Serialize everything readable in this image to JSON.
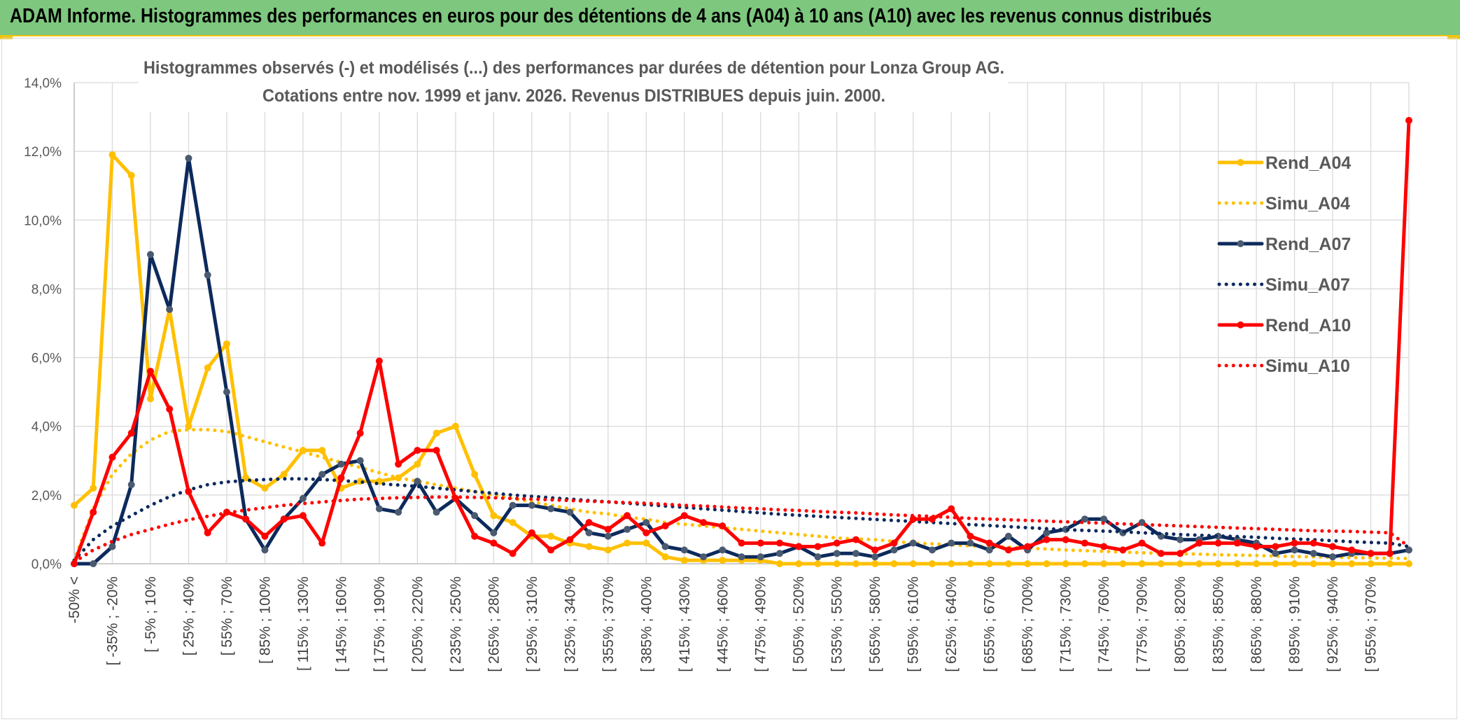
{
  "banner": {
    "title": "ADAM Informe. Histogrammes des performances en euros pour des détentions de 4 ans (A04) à 10 ans (A10) avec les revenus connus distribués"
  },
  "chart_data": {
    "type": "line",
    "title_line1": "Histogrammes observés (-) et modélisés (...) des performances par durées de détention pour Lonza Group AG.",
    "title_line2": "Cotations entre nov. 1999 et janv. 2026. Revenus DISTRIBUES depuis juin. 2000.",
    "ylim": [
      0,
      14
    ],
    "yticks": [
      {
        "v": 0,
        "label": "0,0%"
      },
      {
        "v": 2,
        "label": "2,0%"
      },
      {
        "v": 4,
        "label": "4,0%"
      },
      {
        "v": 6,
        "label": "6,0%"
      },
      {
        "v": 8,
        "label": "8,0%"
      },
      {
        "v": 10,
        "label": "10,0%"
      },
      {
        "v": 12,
        "label": "12,0%"
      },
      {
        "v": 14,
        "label": "14,0%"
      }
    ],
    "grid": true,
    "legend_position": "right",
    "n_points": 71,
    "tick_labels": [
      "-50% <",
      "[ -35% ; -20%",
      "[ -5% ; 10%",
      "[ 25% ; 40%",
      "[ 55% ; 70%",
      "[ 85% ; 100%",
      "[ 115% ; 130%",
      "[ 145% ; 160%",
      "[ 175% ; 190%",
      "[ 205% ; 220%",
      "[ 235% ; 250%",
      "[ 265% ; 280%",
      "[ 295% ; 310%",
      "[ 325% ; 340%",
      "[ 355% ; 370%",
      "[ 385% ; 400%",
      "[ 415% ; 430%",
      "[ 445% ; 460%",
      "[ 475% ; 490%",
      "[ 505% ; 520%",
      "[ 535% ; 550%",
      "[ 565% ; 580%",
      "[ 595% ; 610%",
      "[ 625% ; 640%",
      "[ 655% ; 670%",
      "[ 685% ; 700%",
      "[ 715% ; 730%",
      "[ 745% ; 760%",
      "[ 775% ; 790%",
      "[ 805% ; 820%",
      "[ 835% ; 850%",
      "[ 865% ; 880%",
      "[ 895% ; 910%",
      "[ 925% ; 940%",
      "[ 955% ; 970%"
    ],
    "series": [
      {
        "name": "Rend_A04",
        "style": "solid",
        "color": "#ffc000",
        "markers": true,
        "values": [
          1.7,
          2.2,
          11.9,
          11.3,
          4.8,
          7.4,
          4.0,
          5.7,
          6.4,
          2.5,
          2.2,
          2.6,
          3.3,
          3.3,
          2.2,
          2.4,
          2.4,
          2.5,
          2.9,
          3.8,
          4.0,
          2.6,
          1.4,
          1.2,
          0.8,
          0.8,
          0.6,
          0.5,
          0.4,
          0.6,
          0.6,
          0.2,
          0.1,
          0.1,
          0.1,
          0.1,
          0.1,
          0.0,
          0.0,
          0.0,
          0.0,
          0.0,
          0.0,
          0.0,
          0.0,
          0.0,
          0.0,
          0.0,
          0.0,
          0.0,
          0.0,
          0.0,
          0.0,
          0.0,
          0.0,
          0.0,
          0.0,
          0.0,
          0.0,
          0.0,
          0.0,
          0.0,
          0.0,
          0.0,
          0.0,
          0.0,
          0.0,
          0.0,
          0.0,
          0.0,
          0.0
        ]
      },
      {
        "name": "Simu_A04",
        "style": "dotted",
        "color": "#ffc000",
        "markers": false,
        "values": [
          0.1,
          1.6,
          2.6,
          3.2,
          3.6,
          3.85,
          3.9,
          3.9,
          3.85,
          3.7,
          3.55,
          3.4,
          3.25,
          3.1,
          2.95,
          2.8,
          2.65,
          2.5,
          2.4,
          2.3,
          2.2,
          2.1,
          2.0,
          1.9,
          1.8,
          1.7,
          1.6,
          1.5,
          1.45,
          1.35,
          1.3,
          1.2,
          1.15,
          1.1,
          1.05,
          1.0,
          0.95,
          0.9,
          0.85,
          0.8,
          0.75,
          0.72,
          0.7,
          0.65,
          0.6,
          0.58,
          0.55,
          0.52,
          0.5,
          0.48,
          0.45,
          0.43,
          0.4,
          0.38,
          0.36,
          0.34,
          0.32,
          0.3,
          0.29,
          0.28,
          0.26,
          0.25,
          0.24,
          0.22,
          0.21,
          0.2,
          0.19,
          0.18,
          0.17,
          0.16,
          0.15
        ]
      },
      {
        "name": "Rend_A07",
        "style": "solid",
        "color": "#0d2a5c",
        "markers": true,
        "values": [
          0.0,
          0.0,
          0.5,
          2.3,
          9.0,
          7.4,
          11.8,
          8.4,
          5.0,
          1.3,
          0.4,
          1.3,
          1.9,
          2.6,
          2.9,
          3.0,
          1.6,
          1.5,
          2.4,
          1.5,
          1.9,
          1.4,
          0.9,
          1.7,
          1.7,
          1.6,
          1.5,
          0.9,
          0.8,
          1.0,
          1.2,
          0.5,
          0.4,
          0.2,
          0.4,
          0.2,
          0.2,
          0.3,
          0.5,
          0.2,
          0.3,
          0.3,
          0.2,
          0.4,
          0.6,
          0.4,
          0.6,
          0.6,
          0.4,
          0.8,
          0.4,
          0.9,
          1.0,
          1.3,
          1.3,
          0.9,
          1.2,
          0.8,
          0.7,
          0.7,
          0.8,
          0.7,
          0.6,
          0.3,
          0.4,
          0.3,
          0.2,
          0.3,
          0.3,
          0.3,
          0.4
        ]
      },
      {
        "name": "Simu_A07",
        "style": "dotted",
        "color": "#0d2a5c",
        "markers": false,
        "values": [
          0.1,
          0.7,
          1.1,
          1.4,
          1.7,
          1.95,
          2.15,
          2.3,
          2.38,
          2.42,
          2.45,
          2.47,
          2.47,
          2.45,
          2.42,
          2.38,
          2.33,
          2.29,
          2.25,
          2.2,
          2.15,
          2.1,
          2.05,
          2.0,
          1.96,
          1.92,
          1.88,
          1.84,
          1.8,
          1.76,
          1.72,
          1.68,
          1.64,
          1.6,
          1.56,
          1.52,
          1.48,
          1.44,
          1.41,
          1.38,
          1.35,
          1.32,
          1.29,
          1.26,
          1.23,
          1.2,
          1.17,
          1.14,
          1.11,
          1.08,
          1.05,
          1.02,
          0.99,
          0.97,
          0.95,
          0.93,
          0.9,
          0.88,
          0.85,
          0.83,
          0.81,
          0.79,
          0.77,
          0.74,
          0.72,
          0.7,
          0.67,
          0.64,
          0.62,
          0.6,
          0.5
        ]
      },
      {
        "name": "Rend_A10",
        "style": "solid",
        "color": "#ff0000",
        "markers": true,
        "values": [
          0.0,
          1.5,
          3.1,
          3.8,
          5.6,
          4.5,
          2.1,
          0.9,
          1.5,
          1.3,
          0.8,
          1.3,
          1.4,
          0.6,
          2.5,
          3.8,
          5.9,
          2.9,
          3.3,
          3.3,
          1.9,
          0.8,
          0.6,
          0.3,
          0.9,
          0.4,
          0.7,
          1.2,
          1.0,
          1.4,
          0.9,
          1.1,
          1.4,
          1.2,
          1.1,
          0.6,
          0.6,
          0.6,
          0.5,
          0.5,
          0.6,
          0.7,
          0.4,
          0.6,
          1.3,
          1.3,
          1.6,
          0.8,
          0.6,
          0.4,
          0.5,
          0.7,
          0.7,
          0.6,
          0.5,
          0.4,
          0.6,
          0.3,
          0.3,
          0.6,
          0.6,
          0.6,
          0.5,
          0.5,
          0.6,
          0.6,
          0.5,
          0.4,
          0.3,
          0.3,
          12.9
        ]
      },
      {
        "name": "Simu_A10",
        "style": "dotted",
        "color": "#ff0000",
        "markers": false,
        "values": [
          0.05,
          0.4,
          0.65,
          0.85,
          1.0,
          1.15,
          1.28,
          1.38,
          1.48,
          1.56,
          1.63,
          1.7,
          1.75,
          1.8,
          1.84,
          1.88,
          1.9,
          1.92,
          1.93,
          1.94,
          1.94,
          1.93,
          1.92,
          1.9,
          1.88,
          1.86,
          1.84,
          1.82,
          1.8,
          1.78,
          1.76,
          1.73,
          1.7,
          1.68,
          1.65,
          1.62,
          1.6,
          1.57,
          1.55,
          1.52,
          1.5,
          1.48,
          1.45,
          1.42,
          1.4,
          1.38,
          1.35,
          1.32,
          1.3,
          1.28,
          1.26,
          1.24,
          1.22,
          1.2,
          1.18,
          1.16,
          1.14,
          1.12,
          1.1,
          1.08,
          1.06,
          1.04,
          1.02,
          1.0,
          0.98,
          0.96,
          0.95,
          0.94,
          0.92,
          0.9,
          0.5
        ]
      }
    ]
  }
}
